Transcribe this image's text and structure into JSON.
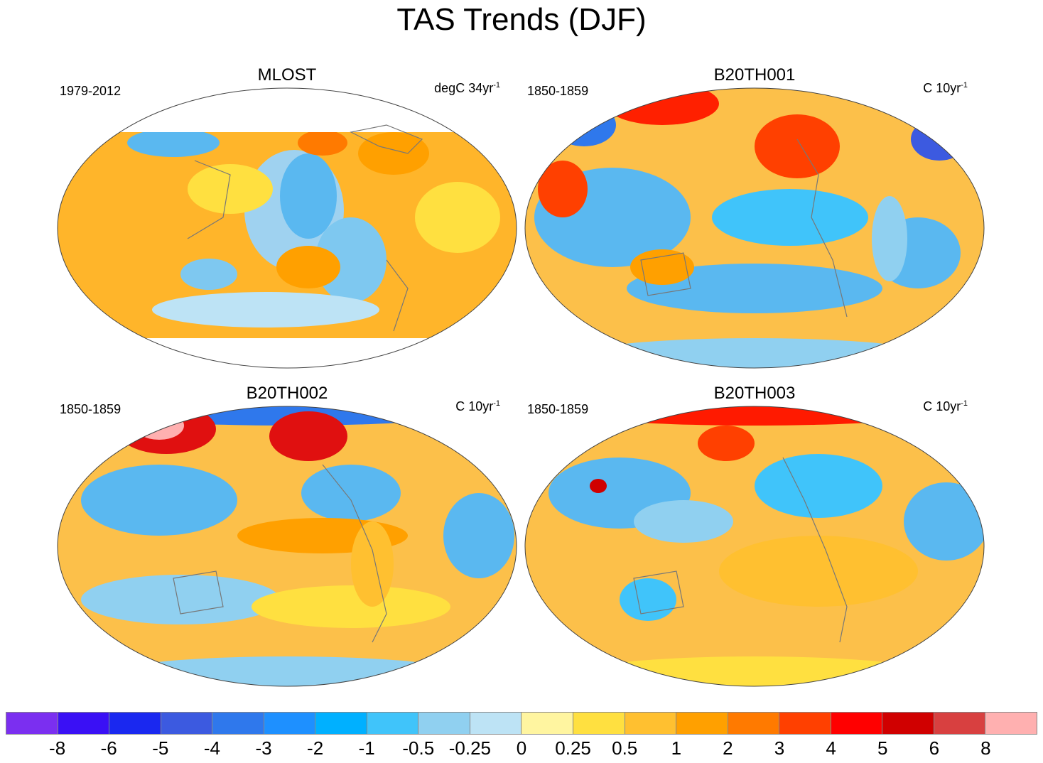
{
  "title": "TAS Trends (DJF)",
  "panels": [
    {
      "name": "MLOST",
      "left_label": "1979-2012",
      "right_label_base": "degC 34yr",
      "right_label_sup": "-1",
      "base_color": "#ffb52a"
    },
    {
      "name": "B20TH001",
      "left_label": "1850-1859",
      "right_label_base": "C 10yr",
      "right_label_sup": "-1",
      "base_color": "#fcc04a"
    },
    {
      "name": "B20TH002",
      "left_label": "1850-1859",
      "right_label_base": "C 10yr",
      "right_label_sup": "-1",
      "base_color": "#fcc04a"
    },
    {
      "name": "B20TH003",
      "left_label": "1850-1859",
      "right_label_base": "C 10yr",
      "right_label_sup": "-1",
      "base_color": "#fcc04a"
    }
  ],
  "colorbar": {
    "colors": [
      "#7b2ff0",
      "#3a10f5",
      "#1a28f0",
      "#3c5ae0",
      "#2f78ec",
      "#1e90ff",
      "#00b0ff",
      "#40c4fa",
      "#90d0f0",
      "#bde3f5",
      "#fff5a0",
      "#ffe040",
      "#ffc030",
      "#ffa000",
      "#ff7a00",
      "#ff4000",
      "#ff0000",
      "#d00000",
      "#d84040",
      "#ffb0b0"
    ],
    "labels": [
      "-8",
      "-6",
      "-5",
      "-4",
      "-3",
      "-2",
      "-1",
      "-0.5",
      "-0.25",
      "0",
      "0.25",
      "0.5",
      "1",
      "2",
      "3",
      "4",
      "5",
      "6",
      "8"
    ]
  }
}
